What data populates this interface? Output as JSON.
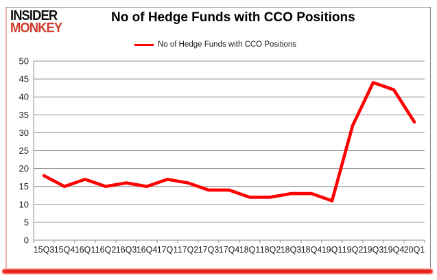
{
  "logo": {
    "line1": "INSIDER",
    "line2": "MONKEY"
  },
  "header": {
    "title": "No of Hedge Funds with CCO Positions"
  },
  "legend": {
    "label": "No of Hedge Funds with CCO Positions"
  },
  "colors": {
    "line_red": "#fe0000",
    "logo_red": "#d03b2b",
    "grid_gray": "#8e8e8e",
    "text_black": "#1a1a1a",
    "border_bottom_red": "#e82115",
    "border_left_pink": "#f0b4ae",
    "border_gray": "#8a8a8a"
  },
  "chart_data": {
    "type": "line",
    "title": "No of Hedge Funds with CCO Positions",
    "categories": [
      "15Q3",
      "15Q4",
      "16Q1",
      "16Q2",
      "16Q3",
      "16Q4",
      "17Q1",
      "17Q2",
      "17Q3",
      "17Q4",
      "18Q1",
      "18Q2",
      "18Q3",
      "18Q4",
      "19Q1",
      "19Q2",
      "19Q3",
      "19Q4",
      "20Q1"
    ],
    "series": [
      {
        "name": "No of Hedge Funds with CCO Positions",
        "values": [
          18,
          15,
          17,
          15,
          16,
          15,
          17,
          16,
          14,
          14,
          12,
          12,
          13,
          13,
          11,
          32,
          44,
          42,
          33
        ]
      }
    ],
    "xlabel": "",
    "ylabel": "",
    "ylim": [
      0,
      50
    ],
    "ytick_step": 5,
    "grid": true,
    "legend_position": "top-center",
    "line_color": "#fe0000",
    "line_width": 4.6
  }
}
